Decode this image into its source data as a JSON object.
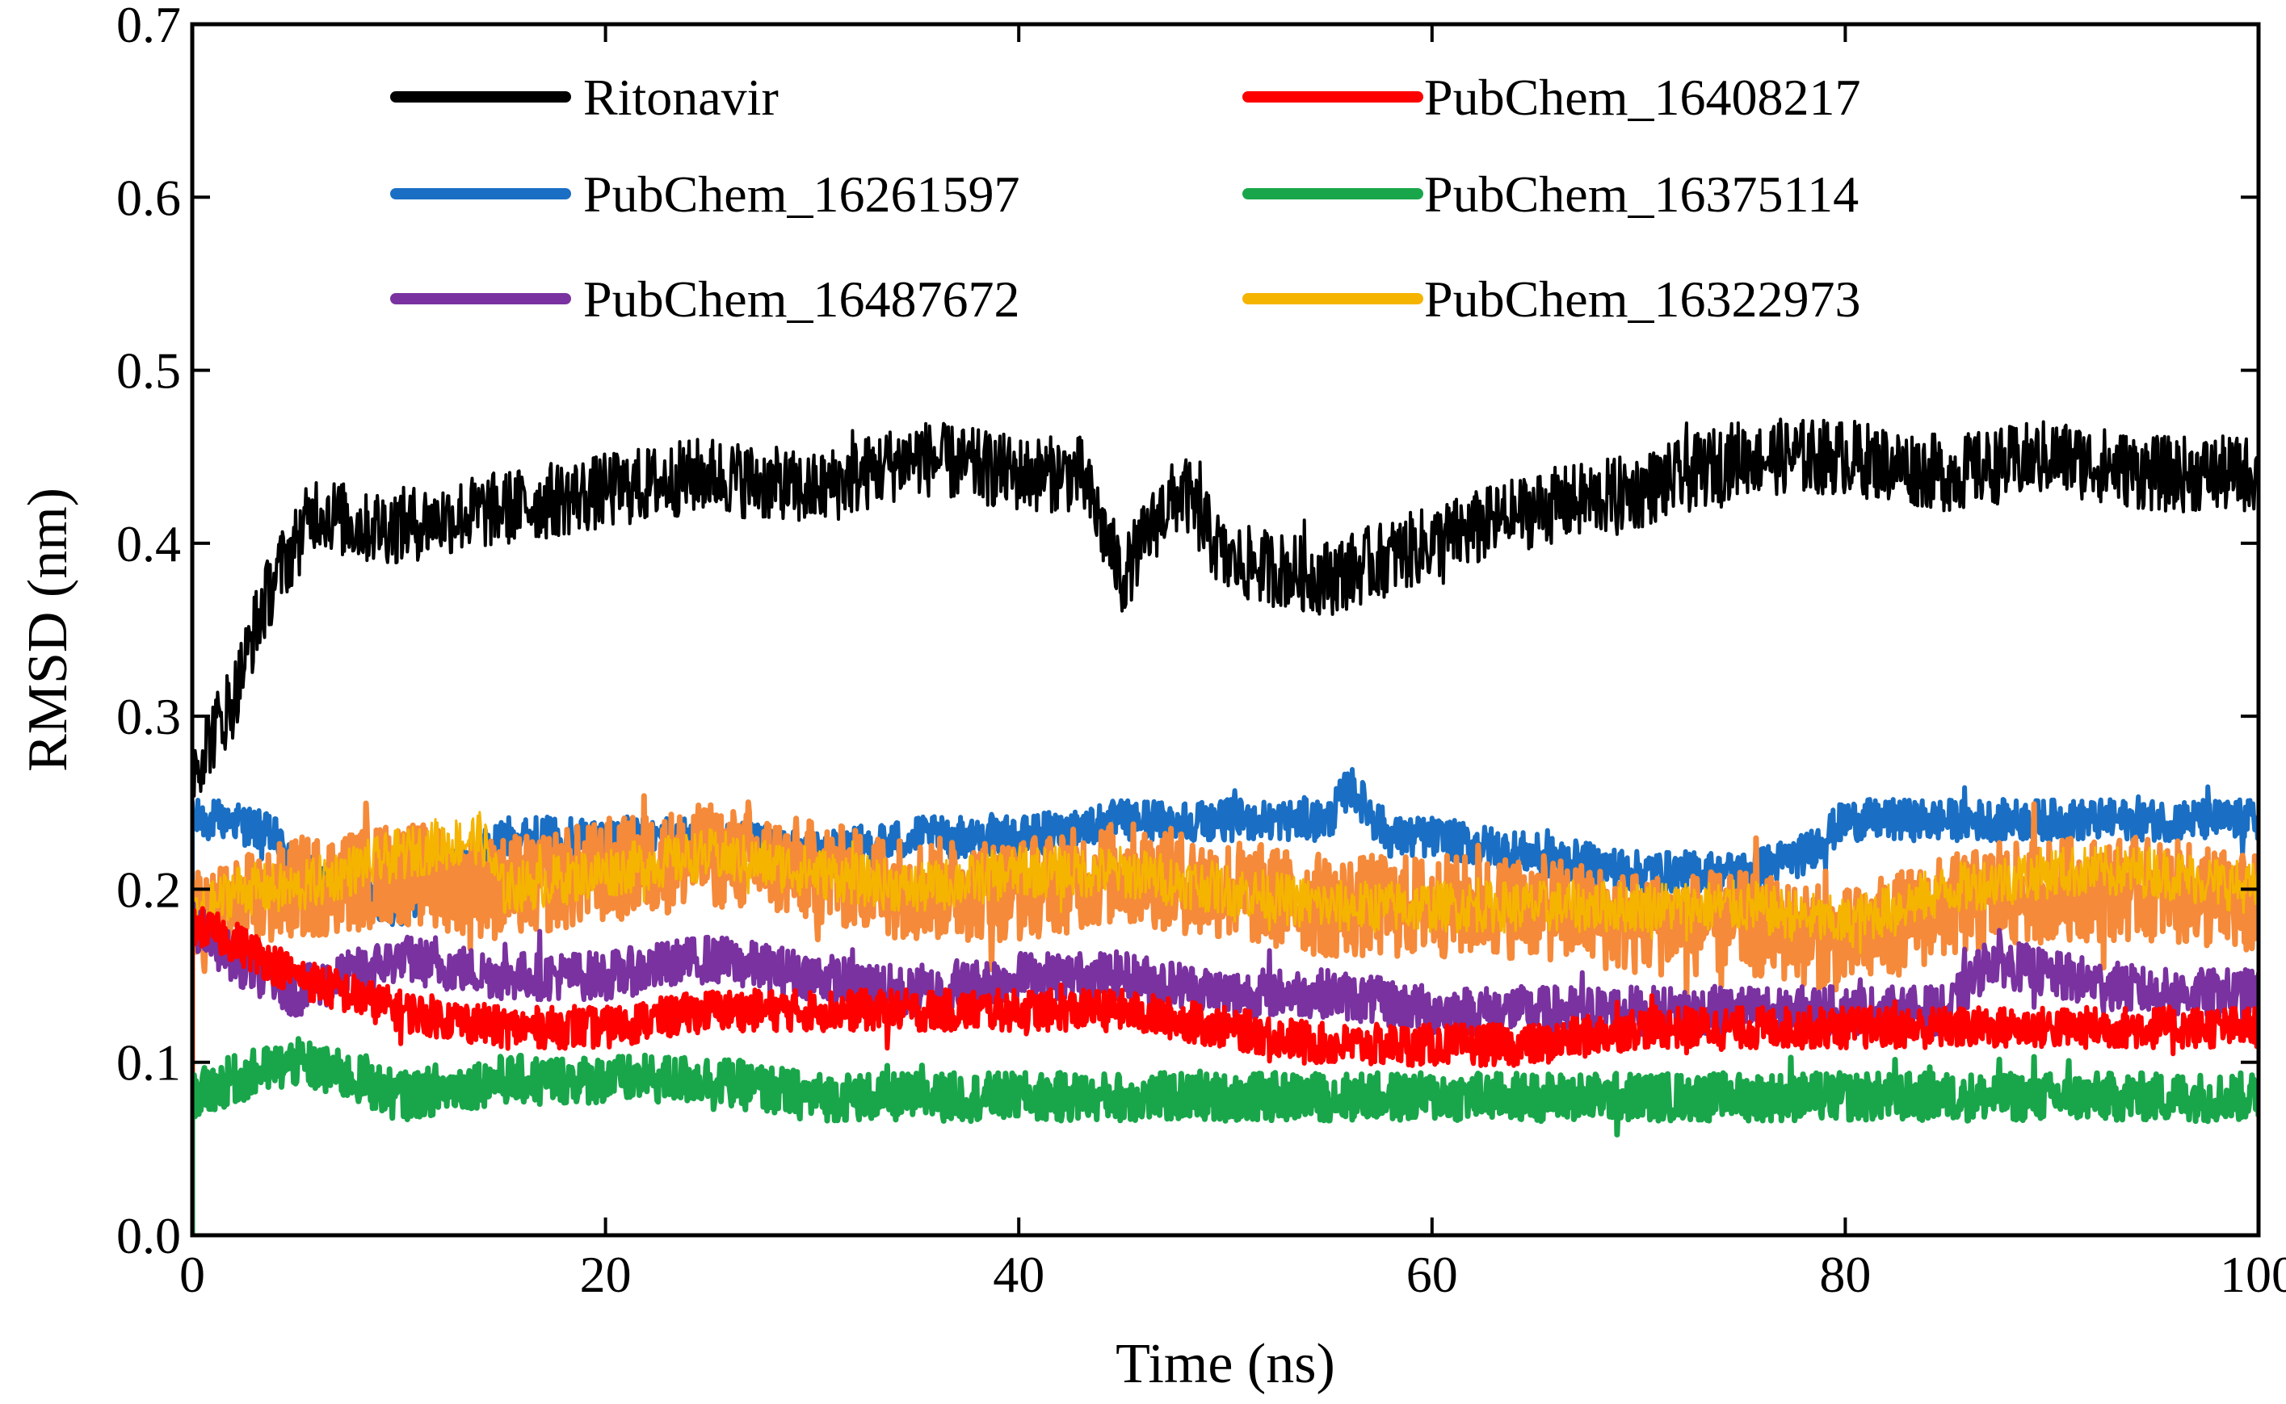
{
  "chart_data": {
    "type": "line",
    "title": "",
    "xlabel": "Time (ns)",
    "ylabel": "RMSD (nm)",
    "xlim": [
      0,
      100
    ],
    "ylim": [
      0,
      0.7
    ],
    "xticks": [
      0,
      20,
      40,
      60,
      80,
      100
    ],
    "xtick_labels": [
      "0",
      "20",
      "40",
      "60",
      "80",
      "100"
    ],
    "yticks": [
      0.0,
      0.1,
      0.2,
      0.3,
      0.4,
      0.5,
      0.6,
      0.7
    ],
    "ytick_labels": [
      "0.0",
      "0.1",
      "0.2",
      "0.3",
      "0.4",
      "0.5",
      "0.6",
      "0.7"
    ],
    "grid": false,
    "legend_position": "top",
    "series": [
      {
        "name": "Ritonavir",
        "color": "#000000",
        "noise": 0.022,
        "x": [
          0,
          1,
          2,
          3,
          4,
          5,
          6,
          8,
          10,
          15,
          20,
          25,
          30,
          35,
          40,
          43,
          45,
          47,
          48,
          50,
          55,
          60,
          65,
          70,
          75,
          80,
          85,
          90,
          95,
          100
        ],
        "y": [
          0.27,
          0.29,
          0.31,
          0.35,
          0.38,
          0.4,
          0.42,
          0.41,
          0.41,
          0.42,
          0.43,
          0.44,
          0.43,
          0.45,
          0.44,
          0.44,
          0.38,
          0.42,
          0.43,
          0.39,
          0.38,
          0.4,
          0.42,
          0.43,
          0.45,
          0.45,
          0.44,
          0.45,
          0.44,
          0.44
        ]
      },
      {
        "name": "PubChem_16408217",
        "color": "#ff0000",
        "noise": 0.012,
        "x": [
          0,
          2,
          5,
          10,
          15,
          20,
          25,
          30,
          35,
          40,
          45,
          50,
          55,
          60,
          65,
          70,
          75,
          80,
          85,
          90,
          95,
          100
        ],
        "y": [
          0.18,
          0.17,
          0.15,
          0.13,
          0.12,
          0.12,
          0.13,
          0.13,
          0.13,
          0.13,
          0.13,
          0.12,
          0.11,
          0.11,
          0.11,
          0.12,
          0.12,
          0.12,
          0.12,
          0.12,
          0.12,
          0.12
        ]
      },
      {
        "name": "PubChem_16261597",
        "color": "#1a6fc4",
        "noise": 0.012,
        "x": [
          0,
          2,
          4,
          5,
          10,
          15,
          20,
          25,
          30,
          35,
          40,
          45,
          50,
          55,
          56,
          58,
          60,
          65,
          70,
          75,
          78,
          80,
          85,
          90,
          95,
          100
        ],
        "y": [
          0.24,
          0.24,
          0.23,
          0.21,
          0.19,
          0.23,
          0.23,
          0.23,
          0.22,
          0.23,
          0.23,
          0.24,
          0.24,
          0.24,
          0.26,
          0.23,
          0.23,
          0.22,
          0.21,
          0.21,
          0.22,
          0.24,
          0.24,
          0.24,
          0.24,
          0.24
        ]
      },
      {
        "name": "PubChem_16375114",
        "color": "#19a64a",
        "noise": 0.014,
        "x": [
          0,
          2,
          5,
          8,
          10,
          15,
          20,
          25,
          30,
          35,
          40,
          45,
          50,
          55,
          60,
          65,
          70,
          75,
          80,
          85,
          90,
          95,
          100
        ],
        "y": [
          0.08,
          0.09,
          0.1,
          0.09,
          0.08,
          0.09,
          0.09,
          0.09,
          0.08,
          0.08,
          0.08,
          0.08,
          0.08,
          0.08,
          0.08,
          0.08,
          0.08,
          0.08,
          0.08,
          0.08,
          0.08,
          0.08,
          0.08
        ]
      },
      {
        "name": "PubChem_16487672",
        "color": "#7a32a0",
        "noise": 0.014,
        "x": [
          0,
          2,
          5,
          10,
          15,
          20,
          25,
          30,
          35,
          40,
          45,
          50,
          55,
          60,
          65,
          70,
          75,
          80,
          85,
          87,
          90,
          95,
          100
        ],
        "y": [
          0.18,
          0.16,
          0.14,
          0.16,
          0.15,
          0.15,
          0.16,
          0.15,
          0.14,
          0.15,
          0.15,
          0.14,
          0.14,
          0.13,
          0.13,
          0.13,
          0.13,
          0.13,
          0.13,
          0.16,
          0.15,
          0.14,
          0.14
        ]
      },
      {
        "name": "PubChem_16322973",
        "color": "#f5b400",
        "noise": 0.015,
        "x": [
          0,
          2,
          5,
          10,
          14,
          15,
          20,
          25,
          30,
          35,
          40,
          45,
          50,
          55,
          60,
          65,
          70,
          75,
          80,
          85,
          90,
          95,
          100
        ],
        "y": [
          0.18,
          0.2,
          0.2,
          0.22,
          0.23,
          0.2,
          0.21,
          0.22,
          0.21,
          0.2,
          0.21,
          0.21,
          0.2,
          0.19,
          0.19,
          0.19,
          0.19,
          0.19,
          0.18,
          0.2,
          0.21,
          0.21,
          0.2
        ]
      }
    ],
    "overlay_band": {
      "color": "#f58a3a",
      "noise": 0.03,
      "x": [
        0,
        5,
        10,
        15,
        20,
        25,
        30,
        35,
        40,
        45,
        50,
        55,
        60,
        65,
        70,
        75,
        80,
        85,
        90,
        95,
        100
      ],
      "y": [
        0.18,
        0.2,
        0.21,
        0.2,
        0.21,
        0.22,
        0.21,
        0.2,
        0.2,
        0.21,
        0.2,
        0.19,
        0.19,
        0.19,
        0.18,
        0.18,
        0.17,
        0.19,
        0.2,
        0.2,
        0.19
      ]
    }
  }
}
